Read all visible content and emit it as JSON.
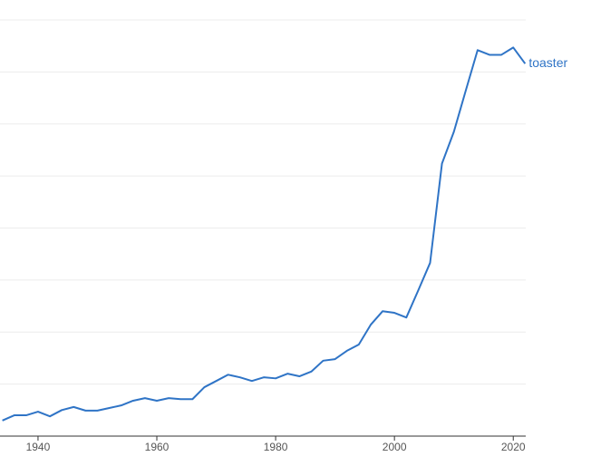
{
  "chart_data": {
    "type": "line",
    "x": [
      1934,
      1936,
      1938,
      1940,
      1942,
      1944,
      1946,
      1948,
      1950,
      1952,
      1954,
      1956,
      1958,
      1960,
      1962,
      1964,
      1966,
      1968,
      1970,
      1972,
      1974,
      1976,
      1978,
      1980,
      1982,
      1984,
      1986,
      1988,
      1990,
      1992,
      1994,
      1996,
      1998,
      2000,
      2002,
      2004,
      2006,
      2008,
      2010,
      2012,
      2014,
      2016,
      2018,
      2020,
      2022
    ],
    "series": [
      {
        "name": "toaster",
        "color": "#2f74c6",
        "values": [
          0.3,
          0.4,
          0.4,
          0.47,
          0.38,
          0.5,
          0.56,
          0.49,
          0.49,
          0.54,
          0.59,
          0.68,
          0.73,
          0.68,
          0.73,
          0.71,
          0.71,
          0.94,
          1.06,
          1.18,
          1.13,
          1.06,
          1.13,
          1.11,
          1.2,
          1.15,
          1.24,
          1.45,
          1.48,
          1.64,
          1.76,
          2.14,
          2.4,
          2.37,
          2.28,
          2.8,
          3.33,
          5.24,
          5.85,
          6.64,
          7.42,
          7.33,
          7.33,
          7.47,
          7.16
        ]
      }
    ],
    "xlim": [
      1933.6,
      2022.1
    ],
    "xticks": [
      1940,
      1960,
      1980,
      2000,
      2020
    ],
    "ylim": [
      0,
      8
    ],
    "yticks": [
      1,
      2,
      3,
      4,
      5,
      6,
      7,
      8
    ],
    "grid": true
  }
}
